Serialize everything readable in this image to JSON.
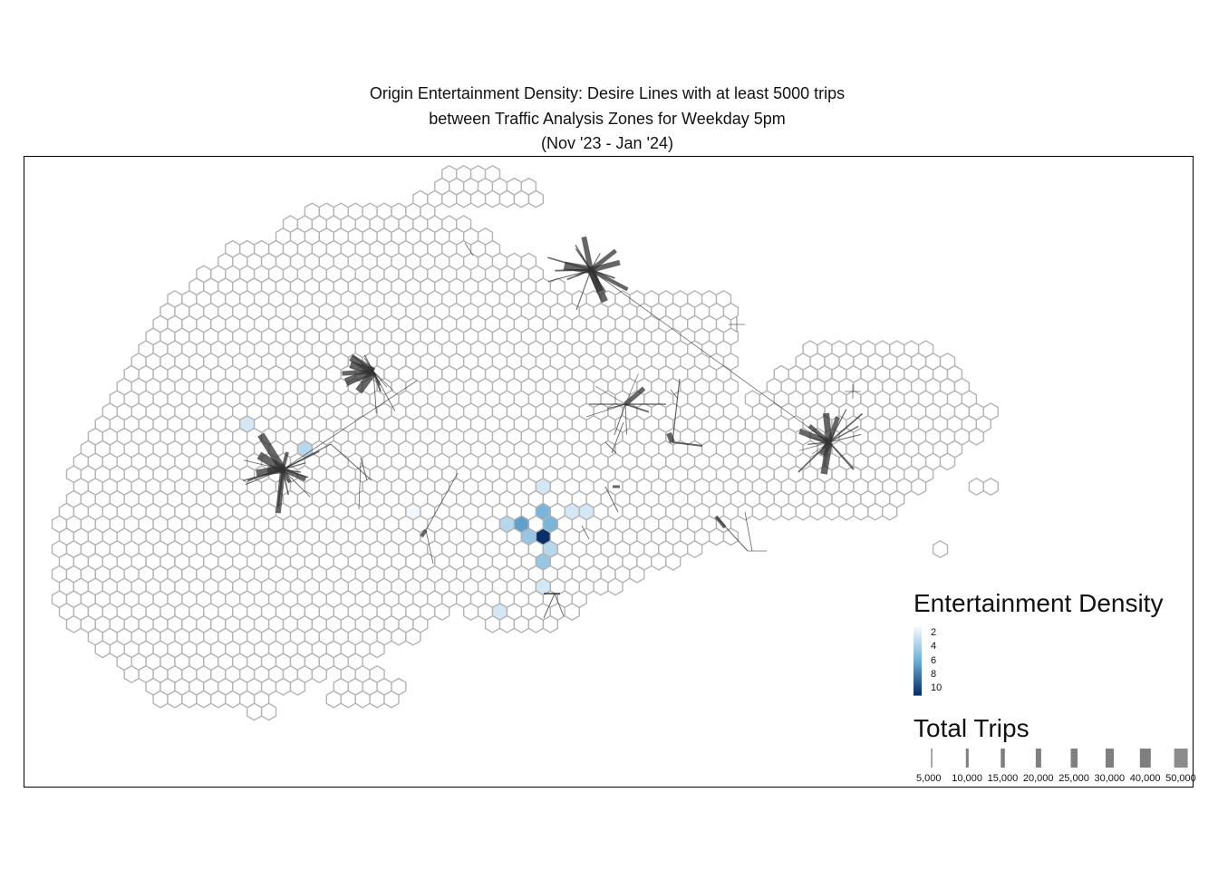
{
  "title": {
    "line1": "Origin Entertainment Density: Desire Lines with at least 5000 trips",
    "line2": "between Traffic Analysis Zones for Weekday 5pm",
    "line3": "(Nov '23 - Jan '24)"
  },
  "colors": {
    "hex_stroke": "#b3b3b3",
    "frame": "#000000",
    "desire_line": "#333333",
    "trips_bar": "#7f7f7f",
    "density_low": "#f2f7fd",
    "density_high": "#08306b"
  },
  "legend": {
    "density": {
      "title": "Entertainment Density",
      "ticks": [
        "2",
        "4",
        "6",
        "8",
        "10"
      ]
    },
    "trips": {
      "title": "Total Trips",
      "labels": [
        "5,000",
        "10,000",
        "15,000",
        "20,000",
        "25,000",
        "30,000",
        "40,000",
        "50,000"
      ],
      "values": [
        5000,
        10000,
        15000,
        20000,
        25000,
        30000,
        40000,
        50000
      ]
    }
  },
  "map_data": {
    "density_range": [
      1,
      10
    ],
    "zone_density": [
      {
        "zone": "core-1",
        "density": 10
      },
      {
        "zone": "core-2",
        "density": 6
      },
      {
        "zone": "core-3",
        "density": 5
      },
      {
        "zone": "core-4",
        "density": 5
      },
      {
        "zone": "core-5",
        "density": 4
      },
      {
        "zone": "core-6",
        "density": 4
      },
      {
        "zone": "core-7",
        "density": 3
      },
      {
        "zone": "core-8",
        "density": 3
      },
      {
        "zone": "core-9",
        "density": 2
      },
      {
        "zone": "core-10",
        "density": 2
      },
      {
        "zone": "core-11",
        "density": 2
      },
      {
        "zone": "core-12",
        "density": 2
      },
      {
        "zone": "west-1",
        "density": 3
      },
      {
        "zone": "west-2",
        "density": 2
      },
      {
        "zone": "south-1",
        "density": 2
      },
      {
        "zone": "north-1",
        "density": 1
      }
    ],
    "trip_hubs": [
      {
        "hub": "northwest-hub",
        "lines": 14
      },
      {
        "hub": "west-hub",
        "lines": 22
      },
      {
        "hub": "north-hub",
        "lines": 20
      },
      {
        "hub": "east-hub",
        "lines": 18
      },
      {
        "hub": "central-hub",
        "lines": 8
      }
    ]
  }
}
